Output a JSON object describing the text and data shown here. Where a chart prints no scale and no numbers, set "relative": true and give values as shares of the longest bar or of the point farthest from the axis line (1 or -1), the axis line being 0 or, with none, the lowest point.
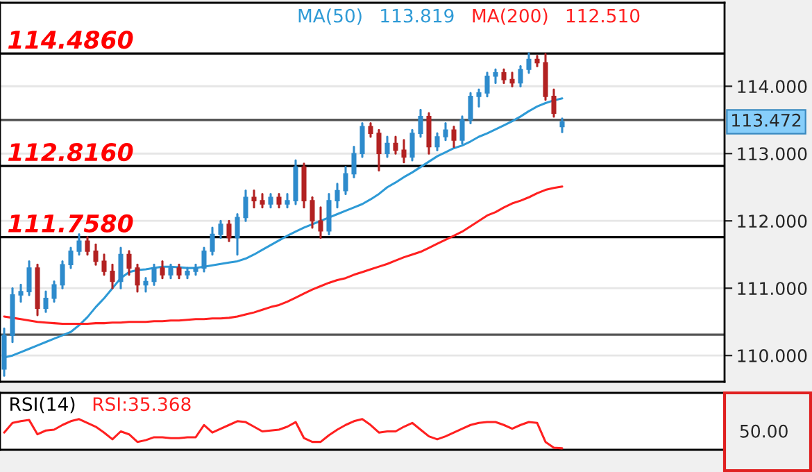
{
  "chart_data": [
    {
      "type": "candlestick",
      "categories": [
        null,
        null,
        null,
        null,
        null,
        null,
        null,
        null,
        null,
        null,
        null,
        null,
        null,
        null,
        null,
        null,
        null,
        null,
        null,
        null,
        null,
        null,
        null,
        null,
        null,
        null,
        null,
        null,
        null,
        null,
        null,
        null,
        null,
        null,
        null,
        null,
        null,
        null,
        null,
        null,
        null,
        null,
        null,
        null,
        null,
        null,
        null,
        null,
        null,
        null,
        null,
        null,
        null,
        null,
        null,
        null,
        null,
        null,
        null,
        null,
        null,
        null,
        null,
        null,
        null,
        null,
        null,
        null,
        null,
        null,
        null,
        null,
        null,
        null,
        null,
        null,
        null,
        null,
        null,
        null,
        null,
        null,
        null,
        null,
        null,
        null,
        null
      ],
      "ohlc": [
        [
          109.8,
          110.4,
          109.7,
          110.3
        ],
        [
          110.3,
          111.0,
          110.2,
          110.9
        ],
        [
          110.9,
          111.05,
          110.8,
          110.95
        ],
        [
          110.95,
          111.4,
          110.9,
          111.3
        ],
        [
          111.3,
          111.35,
          110.6,
          110.7
        ],
        [
          110.7,
          110.95,
          110.65,
          110.85
        ],
        [
          110.85,
          111.1,
          110.8,
          111.05
        ],
        [
          111.05,
          111.4,
          111.0,
          111.35
        ],
        [
          111.35,
          111.6,
          111.3,
          111.55
        ],
        [
          111.55,
          111.8,
          111.5,
          111.7
        ],
        [
          111.7,
          111.76,
          111.5,
          111.55
        ],
        [
          111.55,
          111.65,
          111.35,
          111.4
        ],
        [
          111.4,
          111.5,
          111.2,
          111.25
        ],
        [
          111.25,
          111.35,
          111.0,
          111.1
        ],
        [
          111.1,
          111.6,
          111.0,
          111.5
        ],
        [
          111.5,
          111.55,
          111.2,
          111.3
        ],
        [
          111.3,
          111.35,
          110.95,
          111.05
        ],
        [
          111.05,
          111.15,
          110.95,
          111.1
        ],
        [
          111.1,
          111.35,
          111.05,
          111.3
        ],
        [
          111.3,
          111.4,
          111.15,
          111.2
        ],
        [
          111.2,
          111.35,
          111.15,
          111.3
        ],
        [
          111.3,
          111.35,
          111.15,
          111.2
        ],
        [
          111.2,
          111.3,
          111.15,
          111.25
        ],
        [
          111.25,
          111.35,
          111.2,
          111.3
        ],
        [
          111.3,
          111.6,
          111.25,
          111.55
        ],
        [
          111.55,
          111.9,
          111.5,
          111.8
        ],
        [
          111.8,
          112.0,
          111.75,
          111.95
        ],
        [
          111.95,
          112.0,
          111.7,
          111.75
        ],
        [
          111.75,
          112.1,
          111.5,
          112.05
        ],
        [
          112.05,
          112.45,
          112.0,
          112.35
        ],
        [
          112.35,
          112.45,
          112.2,
          112.3
        ],
        [
          112.3,
          112.4,
          112.2,
          112.25
        ],
        [
          112.25,
          112.4,
          112.2,
          112.35
        ],
        [
          112.35,
          112.4,
          112.2,
          112.25
        ],
        [
          112.25,
          112.4,
          112.2,
          112.3
        ],
        [
          112.3,
          112.9,
          112.25,
          112.8
        ],
        [
          112.8,
          112.85,
          112.2,
          112.3
        ],
        [
          112.3,
          112.35,
          111.9,
          112.0
        ],
        [
          112.0,
          112.2,
          111.75,
          111.85
        ],
        [
          111.85,
          112.4,
          111.8,
          112.3
        ],
        [
          112.3,
          112.55,
          112.2,
          112.45
        ],
        [
          112.45,
          112.8,
          112.4,
          112.7
        ],
        [
          112.7,
          113.1,
          112.65,
          113.0
        ],
        [
          113.0,
          113.45,
          112.95,
          113.4
        ],
        [
          113.4,
          113.45,
          113.25,
          113.3
        ],
        [
          113.3,
          113.35,
          112.75,
          113.0
        ],
        [
          113.0,
          113.25,
          112.95,
          113.15
        ],
        [
          113.15,
          113.25,
          113.0,
          113.05
        ],
        [
          113.05,
          113.2,
          112.87,
          112.95
        ],
        [
          112.95,
          113.35,
          112.9,
          113.3
        ],
        [
          113.3,
          113.65,
          113.25,
          113.55
        ],
        [
          113.55,
          113.6,
          113.0,
          113.1
        ],
        [
          113.1,
          113.3,
          113.05,
          113.25
        ],
        [
          113.25,
          113.45,
          113.2,
          113.35
        ],
        [
          113.35,
          113.4,
          113.1,
          113.2
        ],
        [
          113.2,
          113.55,
          113.15,
          113.5
        ],
        [
          113.5,
          113.9,
          113.45,
          113.85
        ],
        [
          113.85,
          113.95,
          113.7,
          113.9
        ],
        [
          113.9,
          114.2,
          113.85,
          114.15
        ],
        [
          114.15,
          114.25,
          114.05,
          114.2
        ],
        [
          114.2,
          114.25,
          114.05,
          114.1
        ],
        [
          114.1,
          114.2,
          114.0,
          114.05
        ],
        [
          114.05,
          114.3,
          114.0,
          114.25
        ],
        [
          114.25,
          114.49,
          114.2,
          114.4
        ],
        [
          114.4,
          114.45,
          114.3,
          114.35
        ],
        [
          114.35,
          114.48,
          113.8,
          113.85
        ],
        [
          113.85,
          113.95,
          113.55,
          113.6
        ],
        [
          113.4,
          113.52,
          113.32,
          113.472
        ],
        null,
        null,
        null,
        null,
        null,
        null,
        null,
        null,
        null,
        null,
        null,
        null,
        null,
        null,
        null,
        null,
        null,
        null,
        null
      ],
      "colors": [
        "#2e8bcc",
        "#2e8bcc",
        "#2e8bcc",
        "#2e8bcc",
        "#b22222",
        "#2e8bcc",
        "#2e8bcc",
        "#2e8bcc",
        "#2e8bcc",
        "#2e8bcc",
        "#b22222",
        "#b22222",
        "#b22222",
        "#b22222",
        "#2e8bcc",
        "#b22222",
        "#b22222",
        "#2e8bcc",
        "#2e8bcc",
        "#b22222",
        "#2e8bcc",
        "#b22222",
        "#2e8bcc",
        "#2e8bcc",
        "#2e8bcc",
        "#2e8bcc",
        "#2e8bcc",
        "#b22222",
        "#2e8bcc",
        "#2e8bcc",
        "#b22222",
        "#b22222",
        "#2e8bcc",
        "#b22222",
        "#2e8bcc",
        "#2e8bcc",
        "#b22222",
        "#b22222",
        "#b22222",
        "#2e8bcc",
        "#2e8bcc",
        "#2e8bcc",
        "#2e8bcc",
        "#2e8bcc",
        "#b22222",
        "#b22222",
        "#2e8bcc",
        "#b22222",
        "#b22222",
        "#2e8bcc",
        "#2e8bcc",
        "#b22222",
        "#2e8bcc",
        "#2e8bcc",
        "#b22222",
        "#2e8bcc",
        "#2e8bcc",
        "#2e8bcc",
        "#2e8bcc",
        "#2e8bcc",
        "#b22222",
        "#b22222",
        "#2e8bcc",
        "#2e8bcc",
        "#b22222",
        "#b22222",
        "#b22222",
        "#2e8bcc",
        null,
        null,
        null,
        null,
        null,
        null,
        null,
        null,
        null,
        null,
        null,
        null,
        null,
        null,
        null,
        null,
        null,
        null,
        null
      ],
      "series": [
        {
          "type": "line",
          "name": "MA(50)",
          "color": "#2e9ad6",
          "values": [
            109.97,
            110.0,
            110.05,
            110.1,
            110.15,
            110.2,
            110.25,
            110.3,
            110.35,
            110.45,
            110.57,
            110.72,
            110.85,
            111.0,
            111.15,
            111.24,
            111.27,
            111.28,
            111.3,
            111.32,
            111.32,
            111.31,
            111.3,
            111.3,
            111.32,
            111.34,
            111.36,
            111.38,
            111.4,
            111.44,
            111.5,
            111.57,
            111.64,
            111.71,
            111.78,
            111.84,
            111.9,
            111.95,
            112.0,
            112.05,
            112.1,
            112.15,
            112.2,
            112.25,
            112.32,
            112.4,
            112.5,
            112.57,
            112.65,
            112.72,
            112.8,
            112.88,
            112.96,
            113.02,
            113.08,
            113.12,
            113.18,
            113.25,
            113.3,
            113.36,
            113.42,
            113.48,
            113.55,
            113.63,
            113.7,
            113.75,
            113.79,
            113.82,
            null,
            null,
            null,
            null,
            null,
            null,
            null,
            null,
            null,
            null,
            null,
            null,
            null,
            null,
            null,
            null,
            null,
            null,
            null
          ]
        },
        {
          "type": "line",
          "name": "MA(200)",
          "color": "#ff2020",
          "values": [
            110.58,
            110.56,
            110.54,
            110.52,
            110.5,
            110.49,
            110.48,
            110.47,
            110.47,
            110.47,
            110.47,
            110.48,
            110.48,
            110.49,
            110.49,
            110.5,
            110.5,
            110.5,
            110.51,
            110.51,
            110.52,
            110.52,
            110.53,
            110.54,
            110.54,
            110.55,
            110.55,
            110.56,
            110.58,
            110.61,
            110.64,
            110.68,
            110.72,
            110.75,
            110.8,
            110.86,
            110.92,
            110.98,
            111.03,
            111.08,
            111.12,
            111.15,
            111.2,
            111.24,
            111.28,
            111.32,
            111.36,
            111.41,
            111.46,
            111.5,
            111.54,
            111.6,
            111.66,
            111.72,
            111.78,
            111.84,
            111.92,
            112.0,
            112.08,
            112.13,
            112.2,
            112.26,
            112.3,
            112.35,
            112.41,
            112.46,
            112.49,
            112.51,
            null,
            null,
            null,
            null,
            null,
            null,
            null,
            null,
            null,
            null,
            null,
            null,
            null,
            null,
            null,
            null,
            null,
            null,
            null
          ]
        }
      ],
      "annotations": [
        "113.819",
        "112.510",
        "113.472"
      ],
      "ref_lines": [
        {
          "axis": "y",
          "value": 114.486,
          "label": "114.4860",
          "color": "#000000"
        },
        {
          "axis": "y",
          "value": 112.816,
          "label": "112.8160",
          "color": "#000000"
        },
        {
          "axis": "y",
          "value": 111.758,
          "label": "111.7580",
          "color": "#000000"
        },
        {
          "axis": "y",
          "value": 113.5,
          "color": "#555555"
        },
        {
          "axis": "y",
          "value": 110.31,
          "color": "#555555"
        }
      ],
      "ylim": [
        109.61,
        115.24
      ],
      "yticks": [
        {
          "value": 110,
          "label": "110.000"
        },
        {
          "value": 111,
          "label": "111.000"
        },
        {
          "value": 112,
          "label": "112.000"
        },
        {
          "value": 113,
          "label": "113.000"
        },
        {
          "value": 114,
          "label": "114.000"
        }
      ],
      "grid": "y",
      "legend": "top",
      "tick_labels": "y"
    },
    {
      "type": "line",
      "title": "RSI(14)",
      "categories": [
        null,
        null,
        null,
        null,
        null,
        null,
        null,
        null,
        null,
        null,
        null,
        null,
        null,
        null,
        null,
        null,
        null,
        null,
        null,
        null,
        null,
        null,
        null,
        null,
        null,
        null,
        null,
        null,
        null,
        null,
        null,
        null,
        null,
        null,
        null,
        null,
        null,
        null,
        null,
        null,
        null,
        null,
        null,
        null,
        null,
        null,
        null,
        null,
        null,
        null,
        null,
        null,
        null,
        null,
        null,
        null,
        null,
        null,
        null,
        null,
        null,
        null,
        null,
        null,
        null,
        null,
        null,
        null,
        null,
        null,
        null,
        null,
        null,
        null,
        null,
        null,
        null,
        null,
        null,
        null,
        null,
        null,
        null,
        null,
        null,
        null,
        null
      ],
      "series": [
        {
          "color": "#ff2020",
          "values": [
            0.54,
            0.87,
            0.93,
            0.97,
            0.48,
            0.61,
            0.64,
            0.8,
            0.93,
            1,
            0.87,
            0.74,
            0.54,
            0.31,
            0.58,
            0.48,
            0.22,
            0.28,
            0.38,
            0.38,
            0.35,
            0.35,
            0.38,
            0.38,
            0.8,
            0.54,
            0.67,
            0.8,
            0.93,
            0.9,
            0.74,
            0.58,
            0.61,
            0.64,
            0.74,
            0.9,
            0.35,
            0.22,
            0.22,
            0.45,
            0.64,
            0.8,
            0.93,
            1,
            0.8,
            0.54,
            0.58,
            0.58,
            0.74,
            0.87,
            0.64,
            0.41,
            0.31,
            0.41,
            0.54,
            0.67,
            0.8,
            0.87,
            0.9,
            0.9,
            0.8,
            0.67,
            0.8,
            0.9,
            0.87,
            0.22,
            0.02,
            0,
            null,
            null,
            null,
            null,
            null,
            null,
            null,
            null,
            null,
            null,
            null,
            null,
            null,
            null,
            null,
            null,
            null,
            null,
            null
          ]
        }
      ],
      "annotations": [
        "RSI:35.368",
        "50.00"
      ],
      "relative": true
    }
  ]
}
